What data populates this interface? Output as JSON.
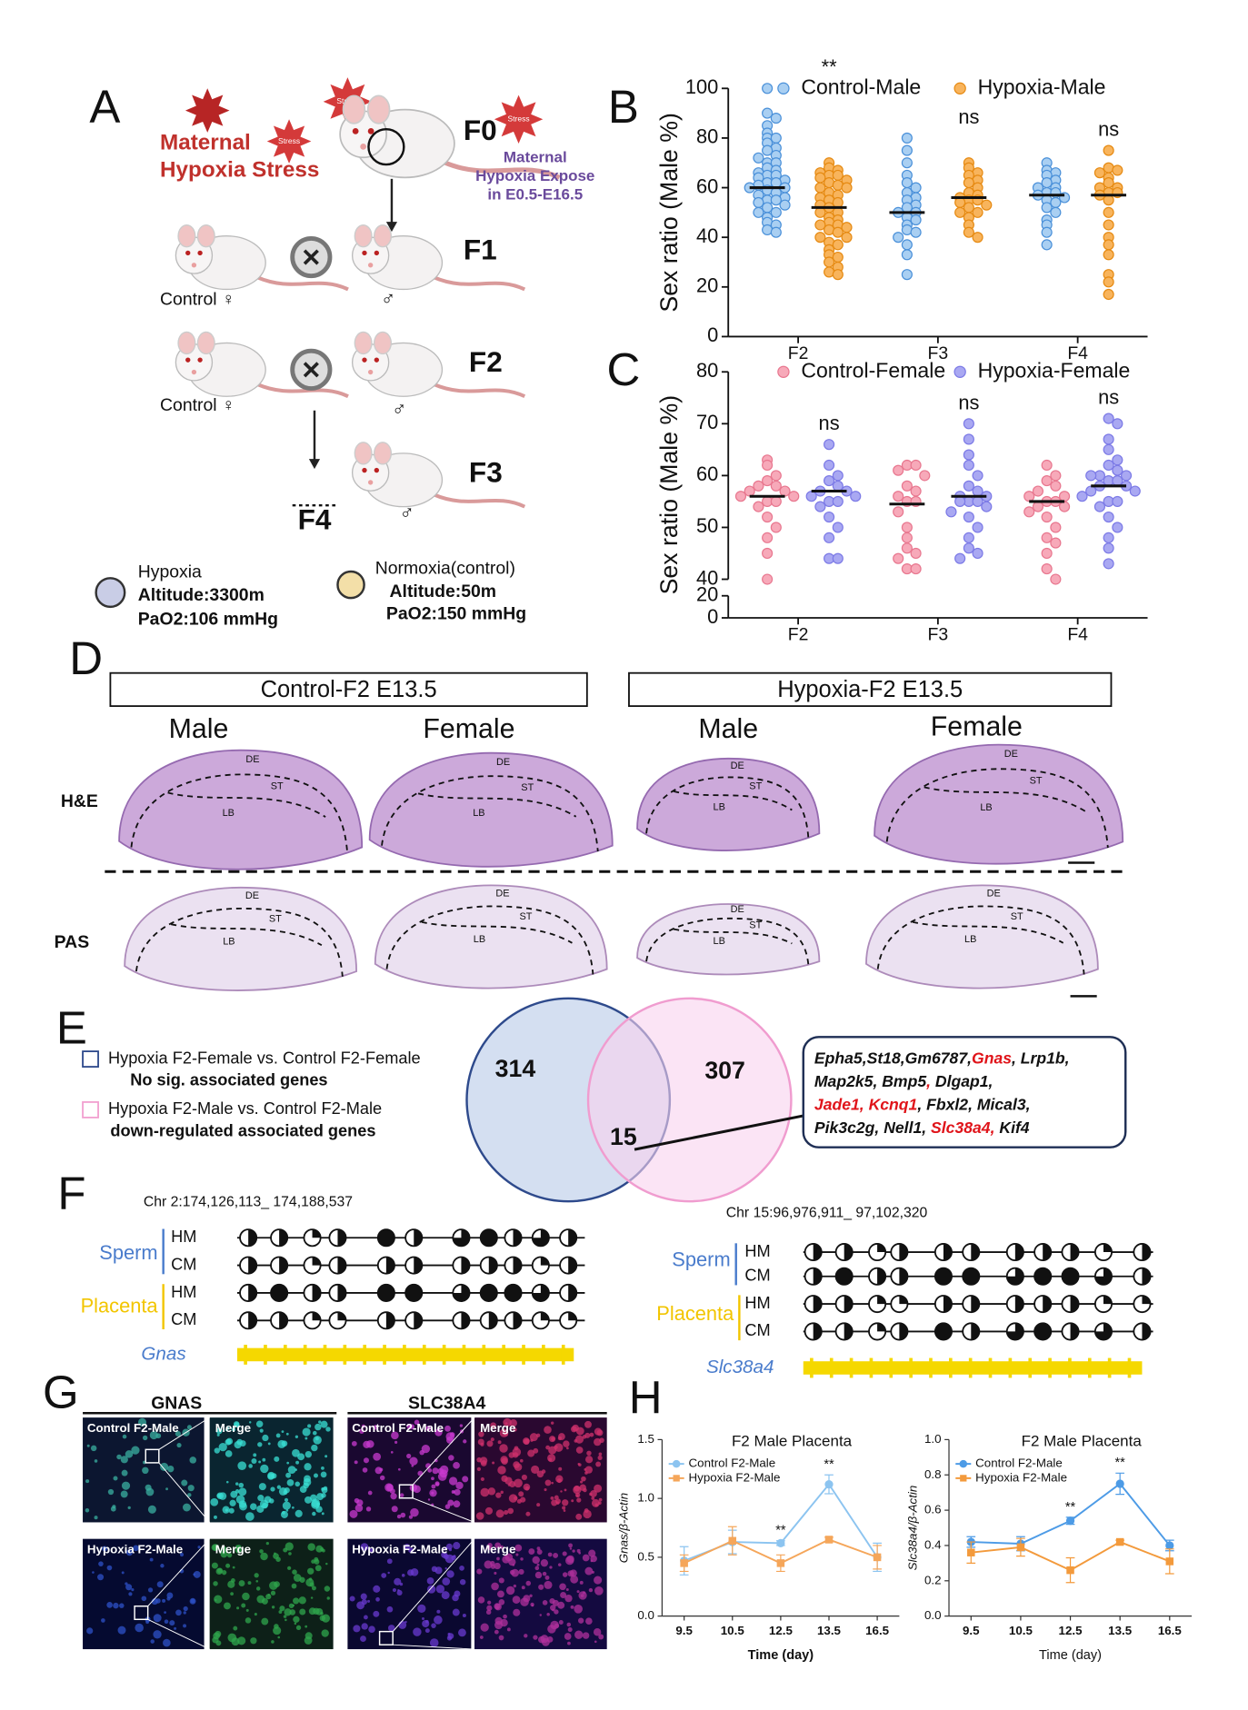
{
  "panel_labels": [
    "A",
    "B",
    "C",
    "D",
    "E",
    "F",
    "G",
    "H"
  ],
  "schematic": {
    "title_lines": [
      "Maternal",
      "Hypoxia Stress"
    ],
    "stress": "Stress",
    "generations": [
      "F0",
      "F1",
      "F2",
      "F3",
      "F4"
    ],
    "expose_lines": [
      "Maternal",
      "Hypoxia Expose",
      "in E0.5-E16.5"
    ],
    "control": "Control ♀",
    "male": "♂",
    "legend": [
      {
        "name": "Hypoxia",
        "lines": [
          "Altitude:3300m",
          "PaO2:106 mmHg"
        ],
        "color": "#c9cde6"
      },
      {
        "name": "Normoxia(control)",
        "lines": [
          "Altitude:50m",
          "PaO2:150 mmHg"
        ],
        "color": "#f3dfa8"
      }
    ]
  },
  "chart_data": [
    {
      "type": "dot",
      "ylabel": "Sex ratio (Male %)",
      "categories": [
        "F2",
        "F3",
        "F4"
      ],
      "ylim": [
        0,
        100
      ],
      "yticks": [
        0,
        20,
        40,
        60,
        80,
        100
      ],
      "significance": [
        "**",
        "ns",
        "ns"
      ],
      "series": [
        {
          "name": "Control-Male",
          "color": "#a9cff2",
          "stroke": "#4a90d9",
          "values": [
            [
              100,
              90,
              88,
              85,
              82,
              80,
              80,
              78,
              76,
              75,
              73,
              72,
              70,
              70,
              68,
              67,
              66,
              65,
              65,
              64,
              63,
              62,
              62,
              61,
              60,
              60,
              59,
              58,
              57,
              56,
              55,
              55,
              54,
              53,
              52,
              50,
              50,
              48,
              46,
              45,
              43,
              42
            ],
            [
              80,
              75,
              70,
              65,
              62,
              60,
              58,
              56,
              55,
              53,
              52,
              50,
              50,
              48,
              47,
              45,
              43,
              42,
              40,
              37,
              33,
              25
            ],
            [
              70,
              67,
              66,
              65,
              63,
              62,
              60,
              60,
              58,
              58,
              57,
              56,
              55,
              54,
              52,
              50,
              47,
              45,
              42,
              37
            ]
          ],
          "means": [
            60,
            50,
            57
          ]
        },
        {
          "name": "Hypoxia-Male",
          "color": "#f8b45c",
          "stroke": "#e68a12",
          "values": [
            [
              70,
              68,
              67,
              66,
              65,
              65,
              64,
              63,
              62,
              61,
              60,
              60,
              58,
              57,
              56,
              55,
              54,
              53,
              52,
              50,
              50,
              48,
              47,
              46,
              45,
              45,
              44,
              43,
              42,
              40,
              40,
              38,
              37,
              35,
              33,
              32,
              30,
              28,
              26,
              25
            ],
            [
              70,
              68,
              66,
              65,
              63,
              62,
              60,
              58,
              57,
              56,
              55,
              55,
              54,
              53,
              52,
              50,
              50,
              48,
              45,
              42,
              40
            ],
            [
              75,
              68,
              67,
              66,
              64,
              62,
              60,
              60,
              58,
              58,
              57,
              55,
              50,
              45,
              40,
              37,
              33,
              25,
              22,
              17
            ]
          ],
          "means": [
            52,
            56,
            57
          ]
        }
      ]
    },
    {
      "type": "dot",
      "ylabel": "Sex ratio (Male %)",
      "categories": [
        "F2",
        "F3",
        "F4"
      ],
      "ylim": [
        40,
        80
      ],
      "yticks": [
        40,
        50,
        60,
        70,
        80
      ],
      "ylim_lower": [
        0,
        20
      ],
      "yticks_lower": [
        0,
        20
      ],
      "significance": [
        "ns",
        "ns",
        "ns"
      ],
      "series": [
        {
          "name": "Control-Female",
          "color": "#f7a9b9",
          "stroke": "#e8778f",
          "values": [
            [
              63,
              62,
              60,
              59,
              58,
              58,
              57,
              57,
              56,
              56,
              55,
              55,
              54,
              52,
              50,
              48,
              45,
              40
            ],
            [
              62,
              62,
              61,
              60,
              58,
              57,
              56,
              55,
              55,
              53,
              50,
              48,
              46,
              45,
              44,
              42,
              42
            ],
            [
              62,
              60,
              59,
              58,
              57,
              56,
              56,
              55,
              55,
              54,
              54,
              53,
              52,
              50,
              48,
              47,
              45,
              42,
              40
            ]
          ],
          "means": [
            56,
            54.5,
            55
          ]
        },
        {
          "name": "Hypoxia-Female",
          "color": "#a9a8f2",
          "stroke": "#7c7ae6",
          "values": [
            [
              66,
              62,
              60,
              59,
              58,
              57,
              57,
              56,
              56,
              55,
              55,
              54,
              52,
              50,
              48,
              44,
              44
            ],
            [
              70,
              67,
              64,
              62,
              60,
              58,
              57,
              56,
              56,
              55,
              55,
              55,
              54,
              53,
              52,
              50,
              48,
              46,
              45,
              44
            ],
            [
              71,
              70,
              67,
              65,
              63,
              62,
              61,
              60,
              60,
              60,
              59,
              59,
              58,
              58,
              57,
              57,
              56,
              55,
              55,
              54,
              52,
              50,
              48,
              46,
              43
            ]
          ],
          "means": [
            57,
            56,
            58
          ]
        }
      ]
    },
    {
      "type": "line",
      "title": "F2 Male Placenta",
      "xlabel": "Time (day)",
      "ylabel": "Gnas/β-Actin",
      "categories": [
        "9.5",
        "10.5",
        "12.5",
        "13.5",
        "16.5"
      ],
      "ylim": [
        0,
        1.5
      ],
      "yticks": [
        {
          "value": 0,
          "label": "0.0"
        },
        0.5,
        {
          "value": 1,
          "label": "1.0"
        },
        1.5
      ],
      "significance": [
        null,
        null,
        "**",
        "**",
        null
      ],
      "series": [
        {
          "name": "Control F2-Male",
          "color": "#8cc4f0",
          "marker": "circle",
          "values": [
            0.47,
            0.63,
            0.62,
            1.12,
            0.5
          ],
          "errors": [
            0.12,
            0.1,
            0.02,
            0.08,
            0.12
          ]
        },
        {
          "name": "Hypoxia F2-Male",
          "color": "#f5a65a",
          "marker": "square",
          "values": [
            0.45,
            0.64,
            0.45,
            0.65,
            0.5
          ],
          "errors": [
            0.07,
            0.12,
            0.07,
            0.02,
            0.1
          ]
        }
      ]
    },
    {
      "type": "line",
      "title": "F2 Male Placenta",
      "xlabel": "Time (day)",
      "ylabel": "Slc38a4/β-Actin",
      "categories": [
        "9.5",
        "10.5",
        "12.5",
        "13.5",
        "16.5"
      ],
      "ylim": [
        0,
        1
      ],
      "yticks": [
        {
          "value": 0,
          "label": "0.0"
        },
        0.2,
        0.4,
        0.6,
        0.8,
        {
          "value": 1,
          "label": "1.0"
        }
      ],
      "significance": [
        null,
        null,
        "**",
        "**",
        null
      ],
      "series": [
        {
          "name": "Control F2-Male",
          "color": "#4d9be6",
          "marker": "circle",
          "values": [
            0.42,
            0.41,
            0.54,
            0.75,
            0.4
          ],
          "errors": [
            0.03,
            0.04,
            0.02,
            0.06,
            0.03
          ]
        },
        {
          "name": "Hypoxia F2-Male",
          "color": "#f39a3c",
          "marker": "square",
          "values": [
            0.36,
            0.39,
            0.26,
            0.42,
            0.31
          ],
          "errors": [
            0.06,
            0.05,
            0.07,
            0.01,
            0.07
          ]
        }
      ]
    }
  ],
  "histology": {
    "groups": [
      "Control-F2 E13.5",
      "Hypoxia-F2 E13.5"
    ],
    "sexes": [
      "Male",
      "Female",
      "Male",
      "Female"
    ],
    "stains": [
      "H&E",
      "PAS"
    ],
    "layers": [
      "DE",
      "ST",
      "LB"
    ]
  },
  "venn": {
    "legend": [
      {
        "lines": [
          "Hypoxia F2-Female vs. Control F2-Female",
          "No sig. associated genes"
        ],
        "color": "#2e4a8c"
      },
      {
        "lines": [
          "Hypoxia F2-Male vs. Control F2-Male",
          "down-regulated associated genes"
        ],
        "color": "#f2a0d0"
      }
    ],
    "left_only": 314,
    "overlap": 15,
    "right_only": 307,
    "genes": [
      [
        {
          "text": "Epha5,St18,Gm6787,",
          "color": "#111111"
        },
        {
          "text": "Gnas",
          "color": "#e0141a"
        },
        {
          "text": ", Lrp1b,",
          "color": "#111111"
        }
      ],
      [
        {
          "text": "Map2k5, Bmp5",
          "color": "#111111"
        },
        {
          "text": ",",
          "color": "#e0141a"
        },
        {
          "text": " Dlgap1,",
          "color": "#111111"
        }
      ],
      [
        {
          "text": "Jade1, Kcnq1",
          "color": "#e0141a"
        },
        {
          "text": ", Fbxl2, Mical3,",
          "color": "#111111"
        }
      ],
      [
        {
          "text": " Pik3c2g, Nell1, ",
          "color": "#111111"
        },
        {
          "text": "Slc38a4,",
          "color": "#e0141a"
        },
        {
          "text": " Kif4",
          "color": "#111111"
        }
      ]
    ]
  },
  "methylation": {
    "left": {
      "region": "Chr 2:174,126,113_ 174,188,537",
      "gene": "Gnas"
    },
    "right": {
      "region": "Chr 15:96,976,911_ 97,102,320",
      "gene": "Slc38a4"
    },
    "tissues": [
      "Sperm",
      "Placenta"
    ],
    "groups": [
      "HM",
      "CM"
    ]
  },
  "immunostaining": {
    "markers": [
      "GNAS",
      "SLC38A4"
    ],
    "conditions": [
      "Control F2-Male",
      "Hypoxia F2-Male"
    ],
    "merge": "Merge"
  }
}
